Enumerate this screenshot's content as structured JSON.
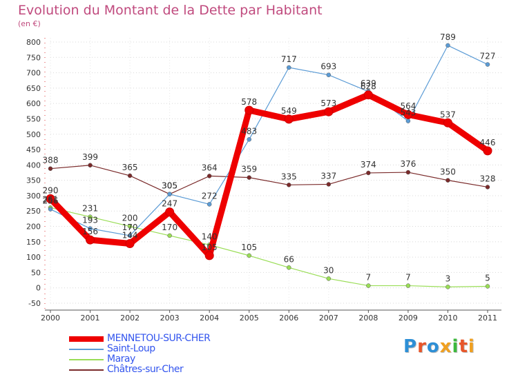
{
  "header": {
    "title": "Evolution du Montant de la Dette par Habitant",
    "unit": "(en €)"
  },
  "brand": {
    "text": "Proxiti",
    "letter_colors": [
      "#2d8fd6",
      "#e8562a",
      "#2d8fd6",
      "#f0a020",
      "#3db83d",
      "#e8562a",
      "#f0a020"
    ]
  },
  "chart_data": {
    "type": "line",
    "x": [
      2000,
      2001,
      2002,
      2003,
      2004,
      2005,
      2006,
      2007,
      2008,
      2009,
      2010,
      2011
    ],
    "ylim": [
      -50,
      800
    ],
    "yticks": [
      -50,
      0,
      50,
      100,
      150,
      200,
      250,
      300,
      350,
      400,
      450,
      500,
      550,
      600,
      650,
      700,
      750,
      800
    ],
    "grid": "horizontal-dotted",
    "legend": "bottom-left",
    "series": [
      {
        "name": "MENNETOU-SUR-CHER",
        "color": "#ee0000",
        "values": [
          290,
          156,
          144,
          247,
          105,
          578,
          549,
          573,
          628,
          564,
          537,
          446
        ]
      },
      {
        "name": "Saint-Loup",
        "color": "#5b9bd5",
        "values": [
          256,
          193,
          170,
          305,
          272,
          483,
          717,
          693,
          639,
          543,
          789,
          727
        ]
      },
      {
        "name": "Maray",
        "color": "#99dd55",
        "values": [
          261,
          231,
          200,
          170,
          140,
          105,
          66,
          30,
          7,
          7,
          3,
          5
        ]
      },
      {
        "name": "Châtres-sur-Cher",
        "color": "#7a2a2a",
        "values": [
          388,
          399,
          365,
          305,
          364,
          359,
          335,
          337,
          374,
          376,
          350,
          328
        ]
      }
    ]
  }
}
